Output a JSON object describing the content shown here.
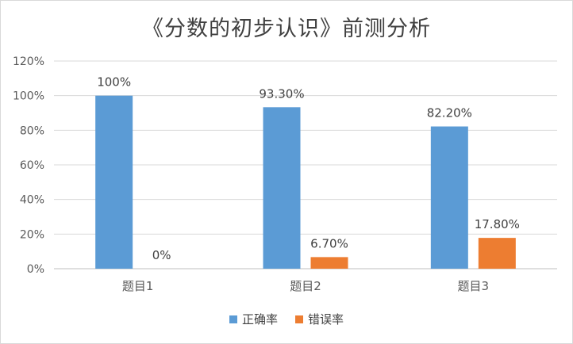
{
  "chart_data": {
    "type": "bar",
    "title": "《分数的初步认识》前测分析",
    "categories": [
      "题目1",
      "题目2",
      "题目3"
    ],
    "series": [
      {
        "name": "正确率",
        "values": [
          100,
          93.3,
          82.2
        ],
        "labels": [
          "100%",
          "93.30%",
          "82.20%"
        ],
        "color": "#5b9bd5"
      },
      {
        "name": "错误率",
        "values": [
          0,
          6.7,
          17.8
        ],
        "labels": [
          "0%",
          "6.70%",
          "17.80%"
        ],
        "color": "#ed7d31"
      }
    ],
    "ylim": [
      0,
      120
    ],
    "yticks": [
      0,
      20,
      40,
      60,
      80,
      100,
      120
    ],
    "ytick_labels": [
      "0%",
      "20%",
      "40%",
      "60%",
      "80%",
      "100%",
      "120%"
    ],
    "grid": true,
    "legend_position": "bottom"
  }
}
